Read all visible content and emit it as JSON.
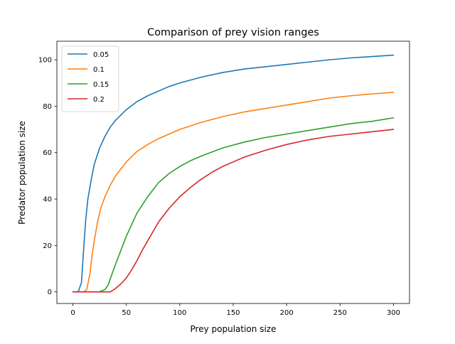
{
  "chart_data": {
    "type": "line",
    "title": "Comparison of prey vision ranges",
    "xlabel": "Prey population size",
    "ylabel": "Predator population size",
    "xlim": [
      -15,
      315
    ],
    "ylim": [
      -5,
      108
    ],
    "xticks": [
      0,
      50,
      100,
      150,
      200,
      250,
      300
    ],
    "yticks": [
      0,
      20,
      40,
      60,
      80,
      100
    ],
    "grid": false,
    "legend_position": "top-left",
    "series": [
      {
        "name": "0.05",
        "color": "#1f77b4",
        "x": [
          0,
          5,
          8,
          10,
          12,
          14,
          17,
          20,
          25,
          30,
          35,
          40,
          50,
          60,
          70,
          80,
          90,
          100,
          120,
          140,
          160,
          180,
          200,
          220,
          240,
          260,
          280,
          300
        ],
        "y": [
          0,
          0,
          4,
          18,
          31,
          40,
          48,
          55,
          62,
          67,
          71,
          74,
          78.5,
          82,
          84.5,
          86.5,
          88.5,
          90,
          92.5,
          94.5,
          96,
          97,
          98,
          99,
          100,
          100.8,
          101.4,
          102
        ]
      },
      {
        "name": "0.1",
        "color": "#ff7f0e",
        "x": [
          0,
          10,
          13,
          16,
          18,
          20,
          23,
          26,
          30,
          35,
          40,
          45,
          50,
          60,
          70,
          80,
          90,
          100,
          120,
          140,
          160,
          180,
          200,
          220,
          240,
          260,
          280,
          300
        ],
        "y": [
          0,
          0,
          1,
          8,
          16,
          22,
          30,
          36,
          41,
          46,
          50,
          53,
          56,
          60.5,
          63.5,
          66,
          68,
          70,
          73,
          75.5,
          77.5,
          79,
          80.5,
          82,
          83.5,
          84.5,
          85.3,
          86
        ]
      },
      {
        "name": "0.15",
        "color": "#2ca02c",
        "x": [
          0,
          25,
          30,
          33,
          36,
          40,
          45,
          50,
          55,
          60,
          65,
          70,
          75,
          80,
          90,
          100,
          110,
          120,
          140,
          160,
          180,
          200,
          220,
          240,
          260,
          280,
          300
        ],
        "y": [
          0,
          0,
          1,
          3,
          7,
          12,
          18,
          24,
          29,
          34,
          37.5,
          41,
          44,
          47,
          51,
          54,
          56.5,
          58.5,
          62,
          64.5,
          66.5,
          68,
          69.5,
          71,
          72.5,
          73.5,
          75
        ]
      },
      {
        "name": "0.2",
        "color": "#d62728",
        "x": [
          0,
          35,
          40,
          45,
          50,
          55,
          60,
          65,
          70,
          75,
          80,
          85,
          90,
          100,
          110,
          120,
          130,
          140,
          150,
          160,
          180,
          200,
          220,
          240,
          260,
          280,
          300
        ],
        "y": [
          0,
          0,
          1.5,
          3.5,
          6,
          9.5,
          13.5,
          18,
          22,
          26,
          30,
          33,
          36,
          41,
          45,
          48.5,
          51.5,
          54,
          56,
          58,
          61,
          63.5,
          65.5,
          67,
          68,
          69,
          70
        ]
      }
    ]
  }
}
